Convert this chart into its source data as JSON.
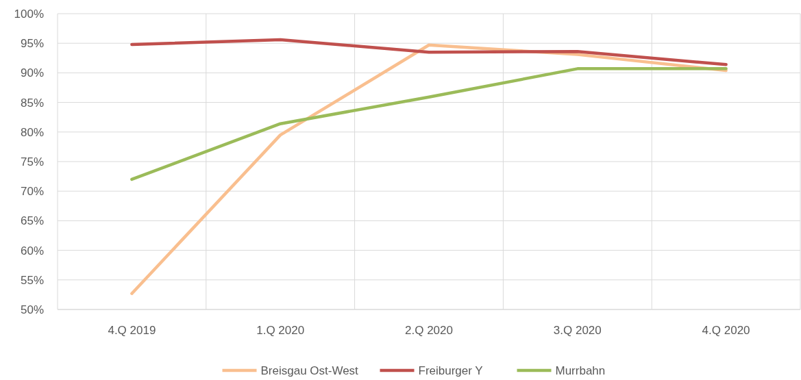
{
  "chart_data": {
    "type": "line",
    "categories": [
      "4.Q 2019",
      "1.Q 2020",
      "2.Q 2020",
      "3.Q 2020",
      "4.Q 2020"
    ],
    "series": [
      {
        "name": "Breisgau Ost-West",
        "color": "#f9bf8f",
        "values": [
          52.7,
          79.5,
          94.7,
          93.1,
          90.4
        ]
      },
      {
        "name": "Freiburger Y",
        "color": "#c0504d",
        "values": [
          94.8,
          95.6,
          93.5,
          93.6,
          91.4
        ]
      },
      {
        "name": "Murrbahn",
        "color": "#9bbb59",
        "values": [
          72.0,
          81.4,
          85.9,
          90.7,
          90.7
        ]
      }
    ],
    "ylim": [
      50,
      100
    ],
    "yticks": [
      {
        "value": 50,
        "label": "50%"
      },
      {
        "value": 55,
        "label": "55%"
      },
      {
        "value": 60,
        "label": "60%"
      },
      {
        "value": 65,
        "label": "65%"
      },
      {
        "value": 70,
        "label": "70%"
      },
      {
        "value": 75,
        "label": "75%"
      },
      {
        "value": 80,
        "label": "80%"
      },
      {
        "value": 85,
        "label": "85%"
      },
      {
        "value": 90,
        "label": "90%"
      },
      {
        "value": 95,
        "label": "95%"
      },
      {
        "value": 100,
        "label": "100%"
      }
    ],
    "grid": true,
    "legend": "bottom",
    "marker": "none",
    "line_style": "solid"
  }
}
